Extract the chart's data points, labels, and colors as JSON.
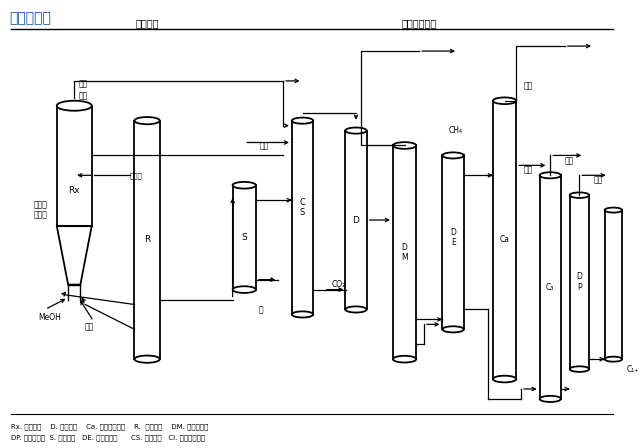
{
  "title": "工艺流程图",
  "section1": "反应部分",
  "section2": "产品回收部分",
  "legend_lines": [
    "Rx. 反应器；    D. 干燥塔；    Ca. 丙烯分离塔；    R.  再生器；    DM. 脱甲烷塔；",
    "DP. 脱丙烷塔；  S. 分离器；   DE. 脱乙烷塔；      CS. 碱洗塔；   Cl. 乙烯分离塔。"
  ]
}
